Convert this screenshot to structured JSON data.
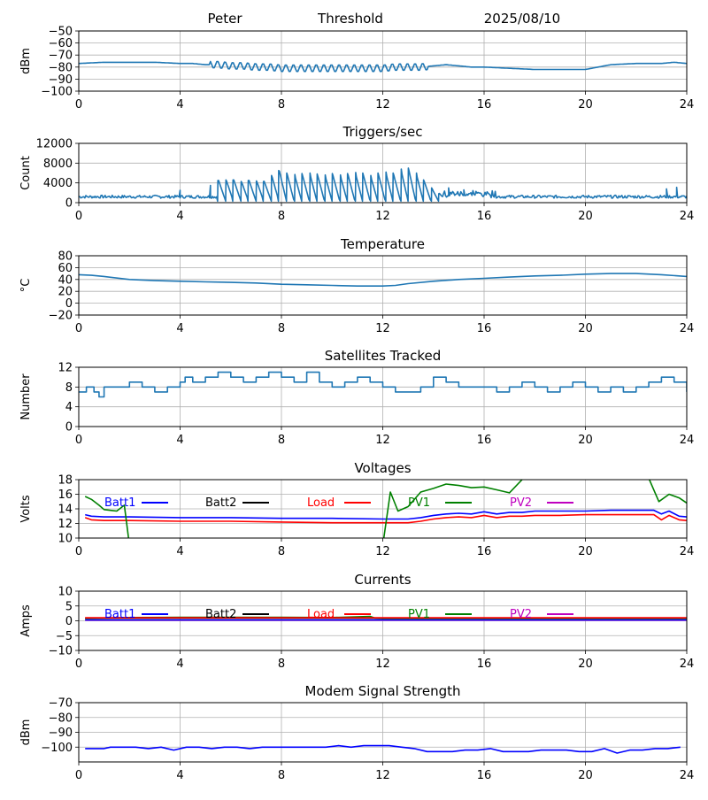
{
  "header": {
    "station": "Peter",
    "mode": "Threshold",
    "date": "2025/08/10"
  },
  "colors": {
    "series": "#1f77b4",
    "grid": "#b0b0b0",
    "batt1": "#0000ff",
    "batt2": "#000000",
    "load": "#ff0000",
    "pv1": "#008000",
    "pv2": "#bf00bf"
  },
  "chart_data": [
    {
      "id": "signal",
      "type": "line",
      "title": "",
      "ylabel": "dBm",
      "xlim": [
        0,
        24
      ],
      "ylim": [
        -100,
        -50
      ],
      "grid": true,
      "xticks": [
        "0",
        "4",
        "8",
        "12",
        "16",
        "20",
        "24"
      ],
      "yticks": [
        "−50",
        "−60",
        "−70",
        "−80",
        "−90",
        "−100"
      ],
      "series": [
        {
          "color": "#1f77b4",
          "x": [
            0,
            1,
            2,
            3,
            4,
            4.5,
            5,
            5.5,
            6,
            6.5,
            7,
            7.5,
            8,
            9,
            10,
            11,
            12,
            12.5,
            13,
            13.5,
            14,
            14.5,
            15,
            15.5,
            16,
            17,
            18,
            19,
            20,
            20.5,
            21,
            22,
            23,
            23.5,
            24
          ],
          "y": [
            -77,
            -76,
            -76,
            -76,
            -77,
            -77,
            -78,
            -78,
            -79,
            -79,
            -80,
            -80,
            -81,
            -81,
            -81,
            -81,
            -81,
            -80,
            -80,
            -80,
            -79,
            -78,
            -79,
            -80,
            -80,
            -81,
            -82,
            -82,
            -82,
            -80,
            -78,
            -77,
            -77,
            -76,
            -77
          ],
          "wiggle": {
            "ranges": [
              [
                5.2,
                13.8
              ]
            ],
            "amp": 3,
            "period": 0.3
          }
        }
      ]
    },
    {
      "id": "triggers",
      "type": "line",
      "title": "Triggers/sec",
      "ylabel": "Count",
      "xlim": [
        0,
        24
      ],
      "ylim": [
        0,
        12000
      ],
      "grid": true,
      "xticks": [
        "0",
        "4",
        "8",
        "12",
        "16",
        "20",
        "24"
      ],
      "yticks": [
        "0",
        "4000",
        "8000",
        "12000"
      ],
      "series": [
        {
          "color": "#1f77b4",
          "baseline": 1200,
          "spikes_x": [
            5.5,
            5.8,
            6.1,
            6.4,
            6.7,
            7.0,
            7.3,
            7.6,
            7.9,
            8.2,
            8.5,
            8.8,
            9.1,
            9.4,
            9.7,
            10.0,
            10.3,
            10.6,
            10.9,
            11.2,
            11.5,
            11.8,
            12.1,
            12.4,
            12.7,
            13.0,
            13.3,
            13.6,
            13.9,
            14.2
          ],
          "spikes_y": [
            4500,
            4600,
            4600,
            4300,
            4500,
            4400,
            4300,
            5500,
            6500,
            6000,
            5700,
            5900,
            6000,
            5800,
            5600,
            5900,
            5600,
            5900,
            6100,
            6000,
            5500,
            6000,
            6200,
            6000,
            6800,
            7000,
            6000,
            4600,
            3000,
            1800
          ],
          "noise_points": [
            [
              4.0,
              2500
            ],
            [
              5.2,
              3500
            ],
            [
              14.6,
              3000
            ],
            [
              15.2,
              2600
            ],
            [
              23.2,
              2800
            ],
            [
              23.6,
              3100
            ]
          ]
        }
      ]
    },
    {
      "id": "temperature",
      "type": "line",
      "title": "Temperature",
      "ylabel": "°C",
      "xlim": [
        0,
        24
      ],
      "ylim": [
        -20,
        80
      ],
      "grid": true,
      "xticks": [
        "0",
        "4",
        "8",
        "12",
        "16",
        "20",
        "24"
      ],
      "yticks": [
        "−20",
        "0",
        "20",
        "40",
        "60",
        "80"
      ],
      "series": [
        {
          "color": "#1f77b4",
          "x": [
            0,
            0.5,
            1,
            2,
            3,
            4,
            5,
            6,
            7,
            8,
            9,
            10,
            11,
            12,
            12.5,
            13,
            14,
            15,
            16,
            17,
            18,
            19,
            20,
            21,
            22,
            23,
            24
          ],
          "y": [
            48,
            47,
            45,
            40,
            38,
            37,
            36,
            35,
            34,
            32,
            31,
            30,
            29,
            29,
            30,
            33,
            37,
            40,
            42,
            44,
            46,
            47,
            49,
            50,
            50,
            48,
            45
          ]
        }
      ]
    },
    {
      "id": "satellites",
      "type": "line",
      "title": "Satellites Tracked",
      "ylabel": "Number",
      "xlim": [
        0,
        24
      ],
      "ylim": [
        0,
        12
      ],
      "grid": true,
      "xticks": [
        "0",
        "4",
        "8",
        "12",
        "16",
        "20",
        "24"
      ],
      "yticks": [
        "0",
        "4",
        "8",
        "12"
      ],
      "series": [
        {
          "color": "#1f77b4",
          "step": true,
          "x": [
            0,
            0.3,
            0.6,
            0.8,
            1,
            1.5,
            2,
            2.5,
            3,
            3.5,
            4,
            4.2,
            4.5,
            5,
            5.5,
            6,
            6.5,
            7,
            7.5,
            8,
            8.5,
            9,
            9.5,
            10,
            10.5,
            11,
            11.5,
            12,
            12.5,
            13,
            13.5,
            14,
            14.5,
            15,
            15.5,
            16,
            16.5,
            17,
            17.5,
            18,
            18.5,
            19,
            19.5,
            20,
            20.5,
            21,
            21.5,
            22,
            22.5,
            23,
            23.5,
            24
          ],
          "y": [
            7,
            8,
            7,
            6,
            8,
            8,
            9,
            8,
            7,
            8,
            9,
            10,
            9,
            10,
            11,
            10,
            9,
            10,
            11,
            10,
            9,
            11,
            9,
            8,
            9,
            10,
            9,
            8,
            7,
            7,
            8,
            10,
            9,
            8,
            8,
            8,
            7,
            8,
            9,
            8,
            7,
            8,
            9,
            8,
            7,
            8,
            7,
            8,
            9,
            10,
            9,
            7
          ]
        }
      ]
    },
    {
      "id": "voltages",
      "type": "line",
      "title": "Voltages",
      "ylabel": "Volts",
      "xlim": [
        0,
        24
      ],
      "ylim": [
        10,
        18
      ],
      "grid": true,
      "xticks": [
        "0",
        "4",
        "8",
        "12",
        "16",
        "20",
        "24"
      ],
      "yticks": [
        "10",
        "12",
        "14",
        "16",
        "18"
      ],
      "legend": [
        "Batt1",
        "Batt2",
        "Load",
        "PV1",
        "PV2"
      ],
      "series": [
        {
          "name": "Batt1",
          "color": "#0000ff",
          "x": [
            0.25,
            0.5,
            1,
            2,
            4,
            6,
            8,
            10,
            12,
            13,
            13.5,
            14,
            14.5,
            15,
            15.5,
            16,
            16.5,
            17,
            17.5,
            18,
            19,
            20,
            21,
            22,
            22.7,
            23,
            23.3,
            23.7,
            24
          ],
          "y": [
            13.2,
            13,
            12.9,
            12.9,
            12.8,
            12.8,
            12.7,
            12.7,
            12.6,
            12.6,
            12.8,
            13.1,
            13.3,
            13.4,
            13.3,
            13.6,
            13.3,
            13.5,
            13.5,
            13.7,
            13.7,
            13.7,
            13.8,
            13.8,
            13.8,
            13.3,
            13.7,
            13,
            12.9
          ]
        },
        {
          "name": "Load",
          "color": "#ff0000",
          "x": [
            0.25,
            0.5,
            1,
            2,
            4,
            6,
            8,
            10,
            12,
            13,
            13.5,
            14,
            14.5,
            15,
            15.5,
            16,
            16.5,
            17,
            17.5,
            18,
            19,
            20,
            21,
            22,
            22.7,
            23,
            23.3,
            23.7,
            24
          ],
          "y": [
            12.8,
            12.5,
            12.4,
            12.4,
            12.3,
            12.3,
            12.2,
            12.1,
            12.1,
            12.1,
            12.3,
            12.6,
            12.8,
            12.9,
            12.8,
            13.1,
            12.8,
            13,
            13,
            13.1,
            13.1,
            13.2,
            13.2,
            13.2,
            13.2,
            12.5,
            13.1,
            12.5,
            12.4
          ]
        },
        {
          "name": "PV1",
          "color": "#008000",
          "segments": [
            {
              "x": [
                0.25,
                0.5,
                0.8,
                1,
                1.5,
                1.8,
                2.0
              ],
              "y": [
                15.7,
                15.3,
                14.5,
                13.9,
                13.7,
                14.5,
                9.0
              ]
            },
            {
              "x": [
                12.0,
                12.3,
                12.6,
                13,
                13.5,
                14,
                14.5,
                15,
                15.5,
                16,
                16.5,
                17,
                17.5,
                17.8
              ],
              "y": [
                9.0,
                16.3,
                13.7,
                14.3,
                16.3,
                16.8,
                17.4,
                17.2,
                16.9,
                17,
                16.6,
                16.2,
                18.0,
                19.0
              ]
            },
            {
              "x": [
                22.4,
                22.9,
                23.3,
                23.7,
                24
              ],
              "y": [
                19.0,
                15.0,
                16.0,
                15.5,
                14.8
              ]
            }
          ]
        }
      ]
    },
    {
      "id": "currents",
      "type": "line",
      "title": "Currents",
      "ylabel": "Amps",
      "xlim": [
        0,
        24
      ],
      "ylim": [
        -10,
        10
      ],
      "grid": true,
      "xticks": [
        "0",
        "4",
        "8",
        "12",
        "16",
        "20",
        "24"
      ],
      "yticks": [
        "−10",
        "−5",
        "0",
        "5",
        "10"
      ],
      "legend": [
        "Batt1",
        "Batt2",
        "Load",
        "PV1",
        "PV2"
      ],
      "series": [
        {
          "name": "PV2",
          "color": "#bf00bf",
          "x": [
            0.25,
            24
          ],
          "y": [
            0.2,
            0.2
          ]
        },
        {
          "name": "Batt1",
          "color": "#0000ff",
          "x": [
            0.25,
            24
          ],
          "y": [
            0.3,
            0.3
          ]
        },
        {
          "name": "PV1",
          "color": "#008000",
          "x": [
            0.25,
            2,
            4,
            6,
            8,
            10,
            11.5,
            11.7,
            12,
            24
          ],
          "y": [
            0.8,
            1.1,
            1.2,
            1.2,
            1.2,
            1.1,
            1.5,
            0.9,
            0.8,
            0.8
          ]
        },
        {
          "name": "Batt2",
          "color": "#000000",
          "x": [
            0.25,
            24
          ],
          "y": [
            0.9,
            0.9
          ]
        },
        {
          "name": "Load",
          "color": "#ff0000",
          "x": [
            0.25,
            24
          ],
          "y": [
            1.0,
            1.0
          ]
        }
      ]
    },
    {
      "id": "modem",
      "type": "line",
      "title": "Modem Signal Strength",
      "ylabel": "dBm",
      "xlim": [
        0,
        24
      ],
      "ylim": [
        -110,
        -70
      ],
      "grid": true,
      "xticks": [
        "0",
        "4",
        "8",
        "12",
        "16",
        "20",
        "24"
      ],
      "yticks": [
        "−70",
        "−80",
        "−90",
        "−100"
      ],
      "series": [
        {
          "color": "#0000ff",
          "x": [
            0.25,
            0.75,
            1,
            1.25,
            1.75,
            2.25,
            2.75,
            3.25,
            3.75,
            4.25,
            4.75,
            5.25,
            5.75,
            6.25,
            6.75,
            7.25,
            7.75,
            8.25,
            8.75,
            9.25,
            9.75,
            10.25,
            10.75,
            11.25,
            11.75,
            12.25,
            12.75,
            13.25,
            13.75,
            14.25,
            14.75,
            15.25,
            15.75,
            16.25,
            16.75,
            17.25,
            17.75,
            18.25,
            18.75,
            19.25,
            19.75,
            20.25,
            20.75,
            21.25,
            21.75,
            22.25,
            22.75,
            23.25,
            23.75
          ],
          "y": [
            -101,
            -101,
            -101,
            -100,
            -100,
            -100,
            -101,
            -100,
            -102,
            -100,
            -100,
            -101,
            -100,
            -100,
            -101,
            -100,
            -100,
            -100,
            -100,
            -100,
            -100,
            -99,
            -100,
            -99,
            -99,
            -99,
            -100,
            -101,
            -103,
            -103,
            -103,
            -102,
            -102,
            -101,
            -103,
            -103,
            -103,
            -102,
            -102,
            -102,
            -103,
            -103,
            -101,
            -104,
            -102,
            -102,
            -101,
            -101,
            -100
          ]
        }
      ]
    }
  ]
}
